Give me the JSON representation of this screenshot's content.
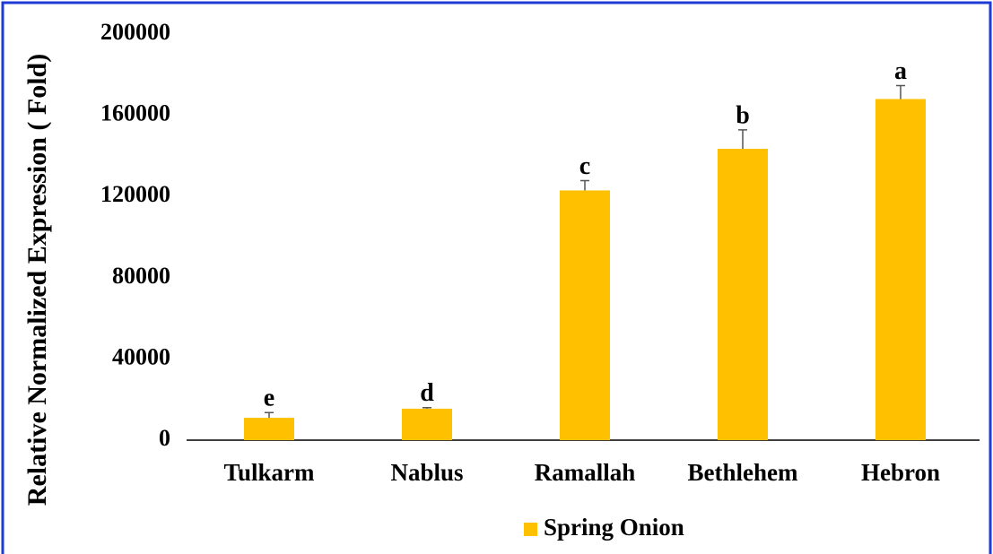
{
  "chart_data": {
    "type": "bar",
    "ylabel": "Relative Normalized Expression ( Fold)",
    "categories": [
      "Tulkarm",
      "Nablus",
      "Ramallah",
      "Bethlehem",
      "Hebron"
    ],
    "series": [
      {
        "name": "Spring Onion",
        "color": "#ffc000",
        "values": [
          11000,
          15500,
          123000,
          143500,
          168000
        ],
        "errors": [
          2600,
          500,
          4800,
          9300,
          6600
        ]
      }
    ],
    "annotations": [
      "e",
      "d",
      "c",
      "b",
      "a"
    ],
    "ylim": [
      0,
      200000
    ],
    "yticks": [
      0,
      40000,
      80000,
      120000,
      160000,
      200000
    ],
    "grid": false,
    "legend": "bottom"
  }
}
